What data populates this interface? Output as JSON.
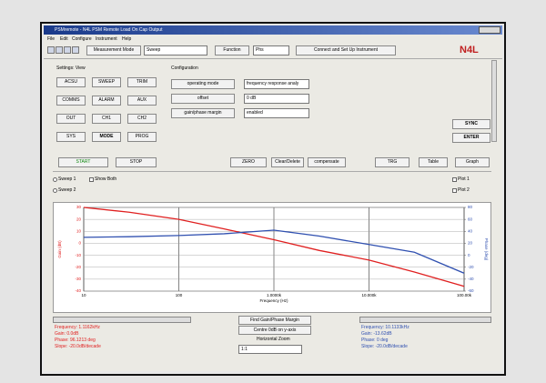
{
  "window": {
    "title": "PSMremote - N4L PSM Remote Load On Cap Output",
    "menu": [
      "File",
      "Edit",
      "Configure",
      "Instrument",
      "Help"
    ]
  },
  "toolbar": {
    "mode_button": "Measurement Mode",
    "mode_value": "Sweep",
    "function_button": "Function",
    "function_value": "Phs",
    "connect_button": "Connect and Set Up Instrument",
    "logo": "N4L"
  },
  "settings": {
    "label": "Settings: View",
    "buttons": [
      "ACSU",
      "SWEEP",
      "TRIM",
      "COMMS",
      "ALARM",
      "AUX",
      "OUT",
      "CH1",
      "CH2",
      "SYS",
      "MODE",
      "PROG"
    ]
  },
  "configuration": {
    "label": "Configuration",
    "rows": [
      {
        "button": "operating mode",
        "value": "frequency response analy"
      },
      {
        "button": "offset",
        "value": "0 dB"
      },
      {
        "button": "gain/phase margin",
        "value": "enabled"
      }
    ]
  },
  "side_buttons": [
    "SYNC",
    "ENTER"
  ],
  "controls": [
    "START",
    "STOP",
    "ZERO",
    "Clear/Delete",
    "compensate",
    "TRG",
    "Table",
    "Graph"
  ],
  "options": {
    "sweep1": "Sweep 1",
    "show_both": "Show Both",
    "sweep2": "Sweep 2",
    "plot1": "Plot 1",
    "plot2": "Plot 2"
  },
  "chart_data": {
    "type": "line",
    "x_label": "Frequency (Hz)",
    "y_label": "Gain (dB)",
    "y2_label": "Phase (deg)",
    "x": [
      10,
      30,
      100,
      300,
      1000,
      3000,
      10000,
      30000,
      100000
    ],
    "log_x": true,
    "xlim": [
      10,
      100000
    ],
    "xticks": [
      10,
      100,
      {
        "value": 1000,
        "label": "1.0000k"
      },
      {
        "value": 10000,
        "label": "10.000k"
      },
      {
        "value": 100000,
        "label": "100.00k"
      }
    ],
    "ylim": [
      -40,
      30
    ],
    "yticks": [
      -40,
      -30,
      -20,
      -10,
      0,
      10,
      20,
      30
    ],
    "y2lim": [
      -60,
      80
    ],
    "y2ticks": [
      -60,
      -40,
      -20,
      0,
      20,
      40,
      60,
      80
    ],
    "grid": true,
    "series": [
      {
        "name": "Gain",
        "color": "#e02020",
        "values": [
          30,
          26,
          20,
          12,
          3,
          -6,
          -14,
          -24,
          -36
        ]
      },
      {
        "name": "Phase",
        "color": "#3050b0",
        "axis": "y2",
        "values": [
          30,
          31,
          33,
          36,
          42,
          32,
          18,
          5,
          -30
        ]
      }
    ]
  },
  "cursor_left": [
    "Frequency: 1.1162kHz",
    "Gain: 0.0dB",
    "Phase: 96.1213 deg",
    "Slope: -20.0dB/decade"
  ],
  "cursor_right": [
    "Frequency: 10.1133kHz",
    "Gain: -13.62dB",
    "Phase: 0 deg",
    "Slope: -20.0dB/decade"
  ],
  "center": {
    "find": "Find Gain/Phase Margin",
    "centre": "Centre 0dB on y-axis",
    "zoom": "Horizontal Zoom",
    "zoom_value": "1:1"
  }
}
